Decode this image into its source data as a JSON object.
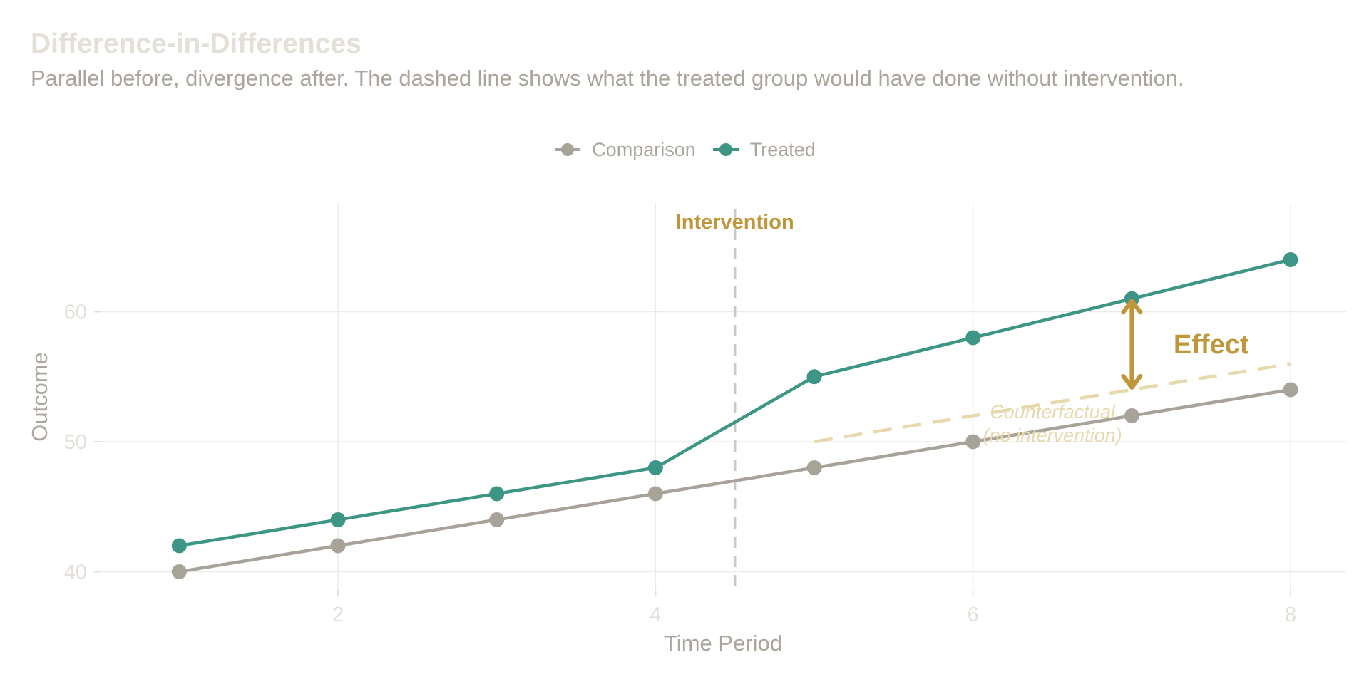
{
  "chart_data": {
    "type": "line",
    "title": "Difference-in-Differences",
    "subtitle": "Parallel before, divergence after. The dashed line shows what the treated group would have done without intervention.",
    "xlabel": "Time Period",
    "ylabel": "Outcome",
    "xlim": [
      0.5,
      8.35
    ],
    "ylim": [
      38.6,
      68.3
    ],
    "x_ticks": [
      2,
      4,
      6,
      8
    ],
    "y_ticks": [
      40,
      50,
      60
    ],
    "grid": true,
    "legend_position": "top-center",
    "x": [
      1,
      2,
      3,
      4,
      5,
      6,
      7,
      8
    ],
    "series": [
      {
        "name": "Comparison",
        "color": "#a8a398",
        "values": [
          40,
          42,
          44,
          46,
          48,
          50,
          52,
          54
        ]
      },
      {
        "name": "Treated",
        "color": "#3d9685",
        "values": [
          42,
          44,
          46,
          48,
          55,
          58,
          61,
          64
        ]
      }
    ],
    "counterfactual": {
      "color": "#e8d8ae",
      "x": [
        5,
        8
      ],
      "y": [
        50,
        56
      ],
      "label_line1": "Counterfactual",
      "label_line2": "(no intervention)",
      "label_x": 6.5,
      "label_y": 51.8
    },
    "intervention": {
      "x": 4.5,
      "label": "Intervention",
      "line_color": "#c8c8c8",
      "label_color": "#bf973a"
    },
    "effect": {
      "x": 7,
      "y_from": 54,
      "y_to": 61,
      "label": "Effect",
      "color": "#bf973a",
      "label_x": 7.5,
      "label_y": 57.5
    }
  }
}
